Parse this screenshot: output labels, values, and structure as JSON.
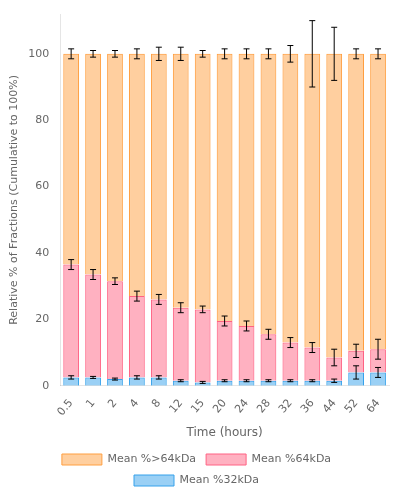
{
  "chart_data": {
    "type": "bar",
    "stacked": true,
    "xlabel": "Time (hours)",
    "ylabel": "Relative % of Fractions (Cumulative to 100%)",
    "categories": [
      "0.5",
      "1",
      "2",
      "4",
      "8",
      "12",
      "15",
      "20",
      "24",
      "28",
      "32",
      "36",
      "44",
      "52",
      "64"
    ],
    "series": [
      {
        "name": "Mean %32kDa",
        "values": [
          2.5,
          2.5,
          2.0,
          2.5,
          2.5,
          1.5,
          1.0,
          1.5,
          1.5,
          1.5,
          1.5,
          1.5,
          1.5,
          4.0,
          4.0
        ],
        "errors": [
          0.5,
          0.3,
          0.3,
          0.5,
          0.5,
          0.3,
          0.3,
          0.3,
          0.3,
          0.3,
          0.3,
          0.3,
          0.5,
          2.0,
          1.5
        ]
      },
      {
        "name": "Mean %64kDa",
        "values": [
          34.0,
          31.0,
          29.5,
          24.5,
          23.5,
          22.0,
          22.0,
          18.0,
          16.5,
          14.0,
          11.5,
          10.0,
          7.0,
          6.5,
          7.0
        ],
        "errors": [
          1.5,
          1.5,
          1.0,
          1.5,
          1.5,
          1.5,
          1.0,
          1.5,
          1.5,
          1.5,
          1.5,
          1.5,
          2.5,
          2.0,
          3.0
        ]
      },
      {
        "name": "Mean %>64kDa",
        "values": [
          63.5,
          66.5,
          68.5,
          73.0,
          74.0,
          76.5,
          77.0,
          80.5,
          82.0,
          84.5,
          87.0,
          88.5,
          91.5,
          89.5,
          89.0
        ],
        "errors": [
          1.5,
          1.0,
          1.0,
          1.5,
          2.0,
          2.0,
          1.0,
          1.5,
          1.5,
          1.5,
          2.5,
          10.0,
          8.0,
          1.5,
          1.5
        ]
      }
    ],
    "ylim": [
      0,
      112
    ],
    "yticks": [
      0,
      20,
      40,
      60,
      80,
      100
    ],
    "grid": false,
    "legend": "bottom"
  }
}
